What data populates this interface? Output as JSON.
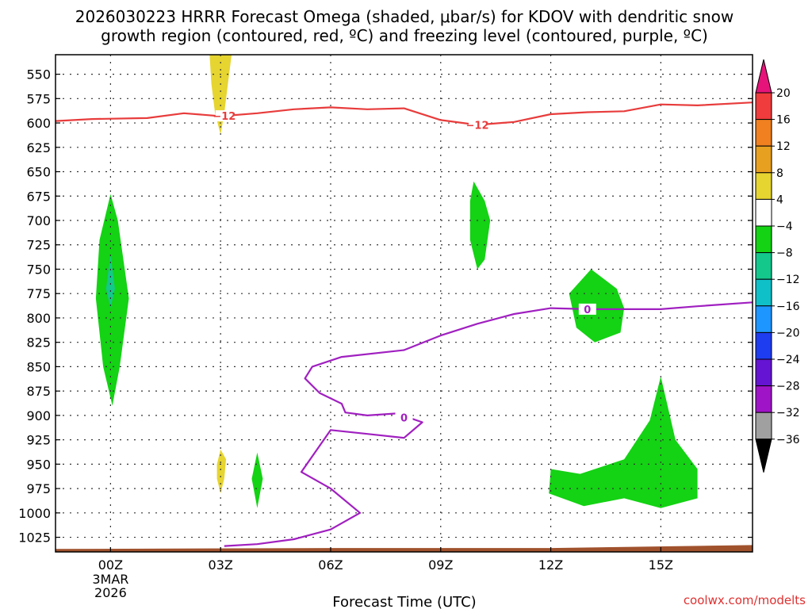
{
  "title_lines": [
    "2026030223 HRRR Forecast Omega (shaded, μbar/s) for KDOV with dendritic snow",
    "growth region (contoured, red, ºC) and freezing level (contoured, purple, ºC)"
  ],
  "credit": "coolwx.com/modelts",
  "chart_data": {
    "type": "contour",
    "title": "2026030223 HRRR Forecast Omega (shaded, μbar/s) for KDOV with dendritic snow growth region (contoured, red, ºC) and freezing level (contoured, purple, ºC)",
    "xlabel": "Forecast Time (UTC)",
    "ylabel": "",
    "x_range_hours": [
      -1.5,
      17.5
    ],
    "y_range_hpa": [
      1040,
      530
    ],
    "y_scale": "pressure",
    "grid": true,
    "x_ticks": [
      {
        "hour": 0,
        "label": "00Z",
        "sublabels": [
          "3MAR",
          "2026"
        ]
      },
      {
        "hour": 3,
        "label": "03Z"
      },
      {
        "hour": 6,
        "label": "06Z"
      },
      {
        "hour": 9,
        "label": "09Z"
      },
      {
        "hour": 12,
        "label": "12Z"
      },
      {
        "hour": 15,
        "label": "15Z"
      }
    ],
    "y_ticks": [
      550,
      575,
      600,
      625,
      650,
      675,
      700,
      725,
      750,
      775,
      800,
      825,
      850,
      875,
      900,
      925,
      950,
      975,
      1000,
      1025
    ],
    "colorbar": {
      "levels": [
        "20",
        "16",
        "12",
        "8",
        "4",
        "−4",
        "−8",
        "−12",
        "−16",
        "−20",
        "−24",
        "−28",
        "−32",
        "−36"
      ],
      "colors": [
        "#f03c3c",
        "#f08020",
        "#e8a020",
        "#e6d431",
        "#ffffff",
        "#14d214",
        "#14c88c",
        "#10c0c8",
        "#1e96ff",
        "#1e3cf0",
        "#6414d2",
        "#a014c8",
        "#a0a0a0"
      ],
      "top_color": "#e6147a",
      "bottom_color": "#000000"
    },
    "red_contour": {
      "color": "#e83c3c",
      "label": "−12",
      "points": [
        [
          -1.5,
          598
        ],
        [
          -0.5,
          596
        ],
        [
          1,
          595
        ],
        [
          2,
          590
        ],
        [
          3,
          593
        ],
        [
          4,
          590
        ],
        [
          5,
          586
        ],
        [
          6,
          584
        ],
        [
          7,
          586
        ],
        [
          8,
          585
        ],
        [
          9,
          597
        ],
        [
          10,
          602
        ],
        [
          11,
          599
        ],
        [
          12,
          591
        ],
        [
          13,
          589
        ],
        [
          14,
          588
        ],
        [
          15,
          581
        ],
        [
          16,
          582
        ],
        [
          17.5,
          579
        ]
      ],
      "label_hours": [
        3.1,
        10.0
      ]
    },
    "purple_contour": {
      "color": "#a020c0",
      "label": "0",
      "points": [
        [
          3.1,
          1034
        ],
        [
          4,
          1032
        ],
        [
          5,
          1027
        ],
        [
          6,
          1017
        ],
        [
          6.8,
          1000
        ],
        [
          6,
          975
        ],
        [
          5.2,
          958
        ],
        [
          6,
          915
        ],
        [
          7,
          919
        ],
        [
          8,
          923
        ],
        [
          8.5,
          907
        ],
        [
          7.8,
          898
        ],
        [
          7,
          900
        ],
        [
          6.4,
          897
        ],
        [
          6.3,
          888
        ],
        [
          5.7,
          877
        ],
        [
          5.3,
          862
        ],
        [
          5.5,
          850
        ],
        [
          6.3,
          840
        ],
        [
          8,
          833
        ],
        [
          9,
          818
        ],
        [
          10,
          806
        ],
        [
          11,
          796
        ],
        [
          12,
          790
        ],
        [
          13,
          791
        ],
        [
          14,
          791
        ],
        [
          15,
          791
        ],
        [
          16,
          788
        ],
        [
          17.5,
          784
        ]
      ],
      "label_hours": [
        8.0,
        13.0
      ]
    },
    "shaded_regions": [
      {
        "level": "4 to 8",
        "color": "#e6d431",
        "points": [
          [
            2.7,
            530
          ],
          [
            3.3,
            530
          ],
          [
            3.2,
            560
          ],
          [
            3.1,
            590
          ],
          [
            3.0,
            612
          ],
          [
            2.85,
            590
          ],
          [
            2.75,
            560
          ]
        ]
      },
      {
        "level": "4 to 8",
        "color": "#e6d431",
        "points": [
          [
            2.9,
            950
          ],
          [
            3.0,
            935
          ],
          [
            3.15,
            945
          ],
          [
            3.1,
            965
          ],
          [
            3.0,
            980
          ],
          [
            2.9,
            965
          ]
        ]
      },
      {
        "level": "-4 to -8",
        "color": "#14d214",
        "points": [
          [
            0,
            673
          ],
          [
            0.2,
            700
          ],
          [
            0.5,
            780
          ],
          [
            0.25,
            850
          ],
          [
            0.05,
            890
          ],
          [
            -0.2,
            850
          ],
          [
            -0.4,
            780
          ],
          [
            -0.3,
            720
          ]
        ]
      },
      {
        "level": "-8 to -12",
        "color": "#14c88c",
        "points": [
          [
            0,
            735
          ],
          [
            0.12,
            770
          ],
          [
            0,
            790
          ],
          [
            -0.12,
            770
          ]
        ]
      },
      {
        "level": "-4 to -8",
        "color": "#14d214",
        "points": [
          [
            4,
            938
          ],
          [
            4.15,
            965
          ],
          [
            4,
            995
          ],
          [
            3.85,
            965
          ]
        ]
      },
      {
        "level": "-4 to -8",
        "color": "#14d214",
        "points": [
          [
            9.9,
            660
          ],
          [
            10.2,
            680
          ],
          [
            10.35,
            700
          ],
          [
            10.2,
            740
          ],
          [
            10,
            750
          ],
          [
            9.8,
            720
          ],
          [
            9.8,
            680
          ]
        ]
      },
      {
        "level": "-4 to -8",
        "color": "#14d214",
        "points": [
          [
            13.1,
            750
          ],
          [
            13.8,
            770
          ],
          [
            14,
            790
          ],
          [
            13.9,
            815
          ],
          [
            13.2,
            825
          ],
          [
            12.7,
            810
          ],
          [
            12.5,
            775
          ]
        ]
      },
      {
        "level": "-4 to -8",
        "color": "#14d214",
        "points": [
          [
            12,
            955
          ],
          [
            12.8,
            960
          ],
          [
            14,
            945
          ],
          [
            14.7,
            905
          ],
          [
            15,
            860
          ],
          [
            15.4,
            925
          ],
          [
            16,
            955
          ],
          [
            16,
            985
          ],
          [
            15,
            995
          ],
          [
            14,
            985
          ],
          [
            12.9,
            993
          ],
          [
            11.95,
            980
          ]
        ]
      }
    ],
    "ground": {
      "color": "#a0522d",
      "pressure_start": 1037,
      "pressure_end": 1033
    }
  }
}
